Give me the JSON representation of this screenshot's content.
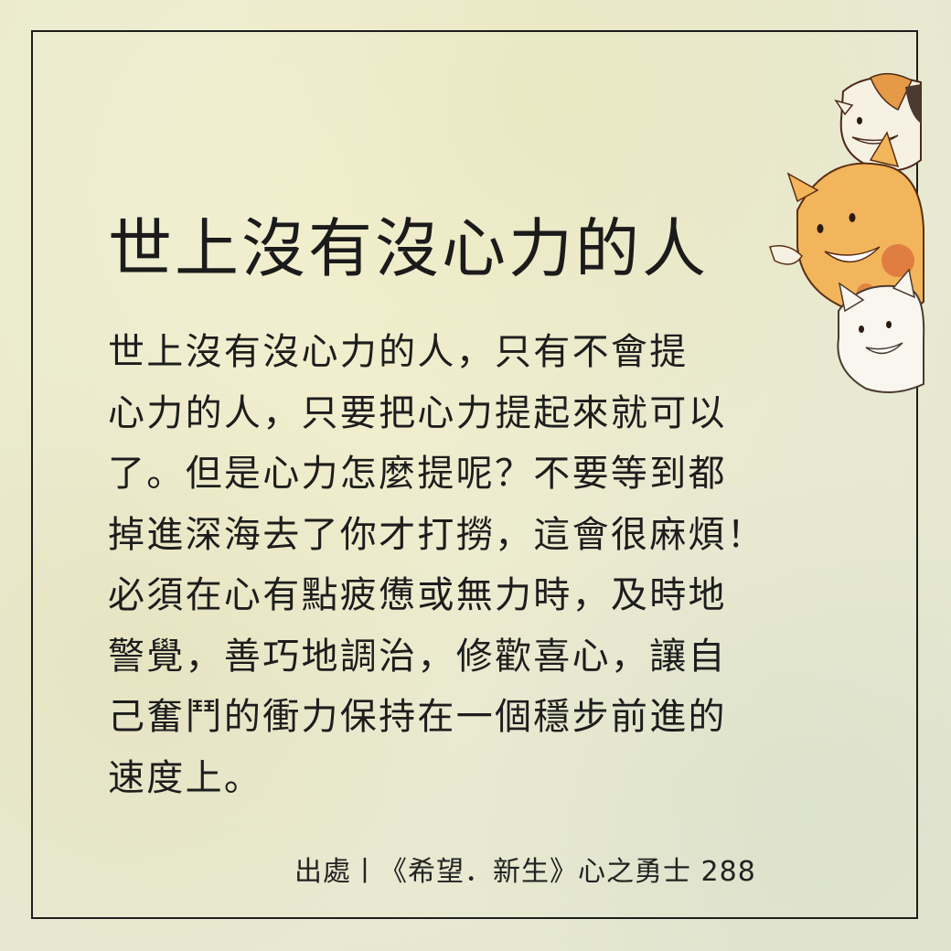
{
  "title": "世上沒有沒心力的人",
  "body_lines": [
    "世上沒有沒心力的人，只有不會提",
    "心力的人，只要把心力提起來就可以",
    "了。但是心力怎麼提呢？不要等到都",
    "掉進深海去了你才打撈，這會很麻煩！",
    "必須在心有點疲憊或無力時，及時地",
    "警覺，善巧地調治，修歡喜心，讓自",
    "己奮鬥的衝力保持在一個穩步前進的",
    "速度上。"
  ],
  "source": "出處丨《希望．新生》心之勇士 288"
}
